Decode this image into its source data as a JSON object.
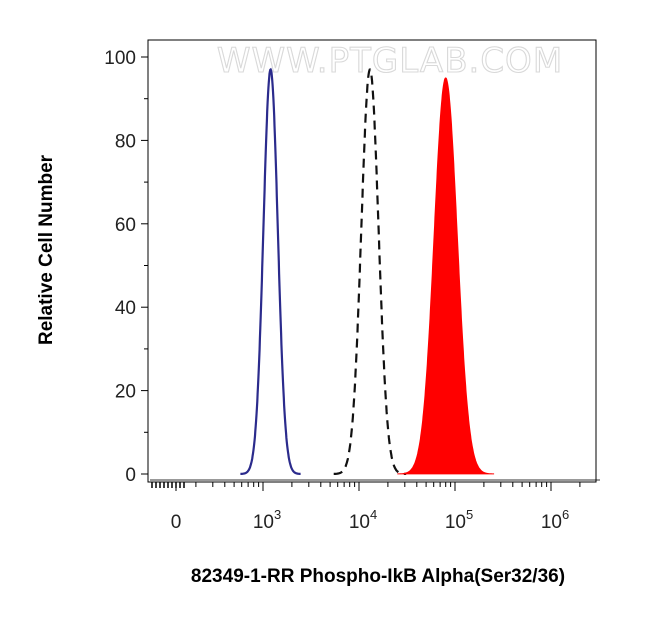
{
  "chart_data": {
    "type": "histogram",
    "watermark": "WWW.PTGLAB.COM",
    "xlabel": "82349-1-RR Phospho-IkB Alpha(Ser32/36)",
    "ylabel": "Relative Cell Number",
    "ylim": [
      0,
      100
    ],
    "xscale": "biexponential",
    "yticks": [
      0,
      20,
      40,
      60,
      80,
      100
    ],
    "xticks": [
      {
        "base": "0",
        "exp": ""
      },
      {
        "base": "10",
        "exp": "3"
      },
      {
        "base": "10",
        "exp": "4"
      },
      {
        "base": "10",
        "exp": "5"
      },
      {
        "base": "10",
        "exp": "6"
      }
    ],
    "grid": false,
    "series": [
      {
        "style": "solid-line",
        "color": "#2b2b8c",
        "peak_x": 1200,
        "peak_y": 97,
        "width_log10": 0.075
      },
      {
        "style": "dashed-line",
        "color": "#111111",
        "peak_x": 13000,
        "peak_y": 97,
        "width_log10": 0.09
      },
      {
        "style": "filled",
        "color": "#ff0000",
        "peak_x": 80000,
        "peak_y": 95,
        "width_log10": 0.12
      }
    ]
  }
}
